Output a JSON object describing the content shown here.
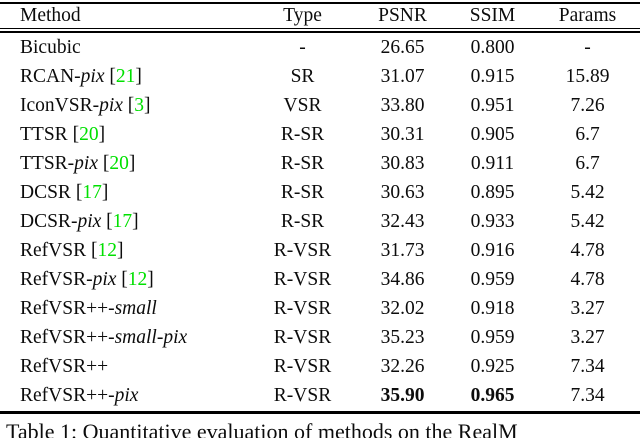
{
  "colors": {
    "citation": "#00e000",
    "text": "#0c0c0c",
    "rule": "#000000",
    "background": "#ffffff"
  },
  "table": {
    "columns": [
      "Method",
      "Type",
      "PSNR",
      "SSIM",
      "Params"
    ],
    "rows": [
      {
        "method": [
          {
            "text": "Bicubic",
            "italic": false
          }
        ],
        "cite": null,
        "type": "-",
        "psnr": "26.65",
        "ssim": "0.800",
        "params": "-",
        "bold": false
      },
      {
        "method": [
          {
            "text": "RCAN-",
            "italic": false
          },
          {
            "text": "pix",
            "italic": true
          }
        ],
        "cite": "21",
        "type": "SR",
        "psnr": "31.07",
        "ssim": "0.915",
        "params": "15.89",
        "bold": false
      },
      {
        "method": [
          {
            "text": "IconVSR-",
            "italic": false
          },
          {
            "text": "pix",
            "italic": true
          }
        ],
        "cite": "3",
        "type": "VSR",
        "psnr": "33.80",
        "ssim": "0.951",
        "params": "7.26",
        "bold": false
      },
      {
        "method": [
          {
            "text": "TTSR",
            "italic": false
          }
        ],
        "cite": "20",
        "type": "R-SR",
        "psnr": "30.31",
        "ssim": "0.905",
        "params": "6.7",
        "bold": false
      },
      {
        "method": [
          {
            "text": "TTSR-",
            "italic": false
          },
          {
            "text": "pix",
            "italic": true
          }
        ],
        "cite": "20",
        "type": "R-SR",
        "psnr": "30.83",
        "ssim": "0.911",
        "params": "6.7",
        "bold": false
      },
      {
        "method": [
          {
            "text": "DCSR",
            "italic": false
          }
        ],
        "cite": "17",
        "type": "R-SR",
        "psnr": "30.63",
        "ssim": "0.895",
        "params": "5.42",
        "bold": false
      },
      {
        "method": [
          {
            "text": "DCSR-",
            "italic": false
          },
          {
            "text": "pix",
            "italic": true
          }
        ],
        "cite": "17",
        "type": "R-SR",
        "psnr": "32.43",
        "ssim": "0.933",
        "params": "5.42",
        "bold": false
      },
      {
        "method": [
          {
            "text": "RefVSR",
            "italic": false
          }
        ],
        "cite": "12",
        "type": "R-VSR",
        "psnr": "31.73",
        "ssim": "0.916",
        "params": "4.78",
        "bold": false
      },
      {
        "method": [
          {
            "text": "RefVSR-",
            "italic": false
          },
          {
            "text": "pix",
            "italic": true
          }
        ],
        "cite": "12",
        "type": "R-VSR",
        "psnr": "34.86",
        "ssim": "0.959",
        "params": "4.78",
        "bold": false
      },
      {
        "method": [
          {
            "text": "RefVSR++-",
            "italic": false
          },
          {
            "text": "small",
            "italic": true
          }
        ],
        "cite": null,
        "type": "R-VSR",
        "psnr": "32.02",
        "ssim": "0.918",
        "params": "3.27",
        "bold": false
      },
      {
        "method": [
          {
            "text": "RefVSR++-",
            "italic": false
          },
          {
            "text": "small-pix",
            "italic": true
          }
        ],
        "cite": null,
        "type": "R-VSR",
        "psnr": "35.23",
        "ssim": "0.959",
        "params": "3.27",
        "bold": false
      },
      {
        "method": [
          {
            "text": "RefVSR++",
            "italic": false
          }
        ],
        "cite": null,
        "type": "R-VSR",
        "psnr": "32.26",
        "ssim": "0.925",
        "params": "7.34",
        "bold": false
      },
      {
        "method": [
          {
            "text": "RefVSR++-",
            "italic": false
          },
          {
            "text": "pix",
            "italic": true
          }
        ],
        "cite": null,
        "type": "R-VSR",
        "psnr": "35.90",
        "ssim": "0.965",
        "params": "7.34",
        "bold": true
      }
    ]
  },
  "caption": "Table 1: Quantitative evaluation of methods on the RealM"
}
